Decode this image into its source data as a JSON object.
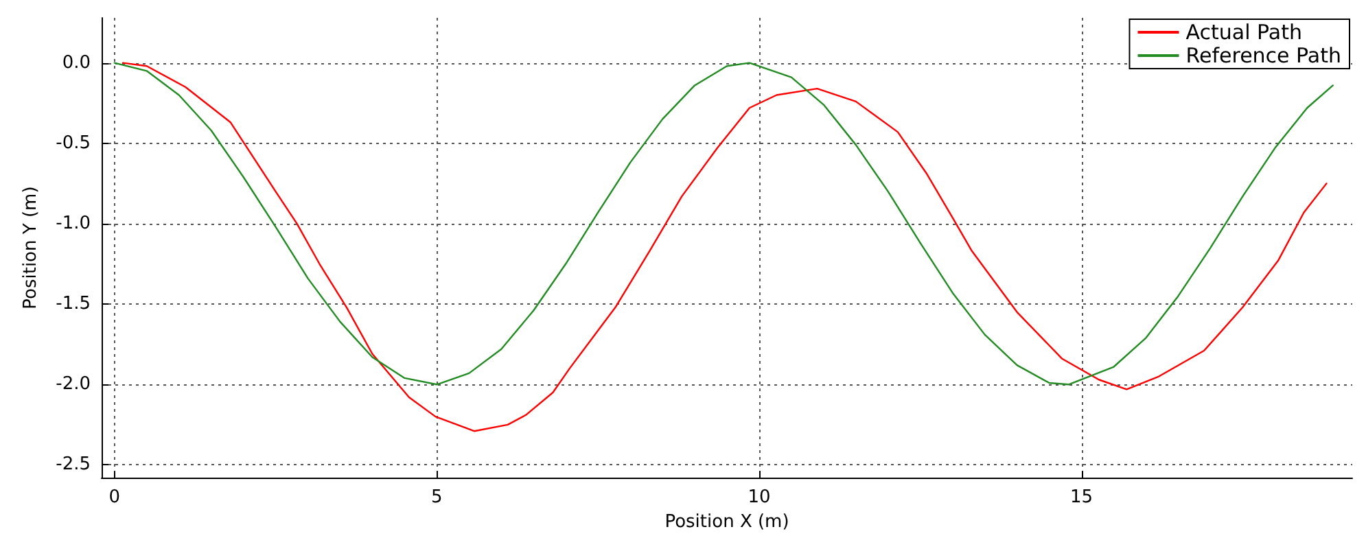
{
  "chart_data": {
    "type": "line",
    "xlabel": "Position X (m)",
    "ylabel": "Position Y (m)",
    "xlim": [
      -0.2,
      19.2
    ],
    "xticks": [
      0,
      5,
      10,
      15
    ],
    "ylim": [
      -2.58,
      0.28
    ],
    "yticks": [
      {
        "value": -2.5,
        "label": "-2.5"
      },
      {
        "value": -2,
        "label": "-2.0"
      },
      {
        "value": -1.5,
        "label": "-1.5"
      },
      {
        "value": -1,
        "label": "-1.0"
      },
      {
        "value": -0.5,
        "label": "-0.5"
      },
      {
        "value": 0,
        "label": "0.0"
      }
    ],
    "grid": true,
    "legend": "top right",
    "line_style": "solid",
    "marker": "none",
    "series": [
      {
        "name": "Actual Path",
        "color": "#ff0000",
        "x": [
          0.13,
          0.5,
          1.1,
          1.8,
          2.5,
          2.83,
          3.18,
          3.6,
          4.0,
          4.57,
          4.98,
          5.58,
          6.1,
          6.38,
          6.8,
          7.06,
          7.77,
          8.3,
          8.8,
          9.35,
          9.85,
          10.27,
          10.9,
          11.5,
          12.15,
          12.6,
          13.04,
          13.3,
          14.0,
          14.7,
          15.27,
          15.7,
          16.2,
          16.9,
          17.5,
          18.05,
          18.45,
          18.8
        ],
        "values": [
          0.0,
          -0.02,
          -0.15,
          -0.37,
          -0.8,
          -1.0,
          -1.25,
          -1.52,
          -1.81,
          -2.08,
          -2.2,
          -2.29,
          -2.25,
          -2.19,
          -2.05,
          -1.9,
          -1.52,
          -1.17,
          -0.83,
          -0.53,
          -0.28,
          -0.2,
          -0.16,
          -0.24,
          -0.43,
          -0.69,
          -0.99,
          -1.17,
          -1.55,
          -1.84,
          -1.97,
          -2.03,
          -1.95,
          -1.79,
          -1.52,
          -1.23,
          -0.93,
          -0.75
        ]
      },
      {
        "name": "Reference Path",
        "color": "#228b22",
        "x": [
          0,
          0.5,
          1,
          1.5,
          2,
          2.5,
          3,
          3.5,
          4,
          4.5,
          5,
          5.5,
          6,
          6.5,
          7,
          7.5,
          8,
          8.5,
          9,
          9.5,
          9.85,
          10.5,
          11,
          11.5,
          12,
          12.5,
          13,
          13.5,
          14,
          14.5,
          14.8,
          15.5,
          16,
          16.5,
          17,
          17.5,
          18,
          18.5,
          18.9
        ],
        "values": [
          0,
          -0.05,
          -0.2,
          -0.42,
          -0.71,
          -1.02,
          -1.34,
          -1.61,
          -1.83,
          -1.96,
          -2.0,
          -1.93,
          -1.78,
          -1.54,
          -1.25,
          -0.93,
          -0.62,
          -0.35,
          -0.14,
          -0.02,
          0,
          -0.09,
          -0.26,
          -0.51,
          -0.8,
          -1.12,
          -1.43,
          -1.69,
          -1.88,
          -1.99,
          -2.0,
          -1.89,
          -1.71,
          -1.45,
          -1.15,
          -0.83,
          -0.53,
          -0.28,
          -0.14
        ]
      }
    ]
  }
}
